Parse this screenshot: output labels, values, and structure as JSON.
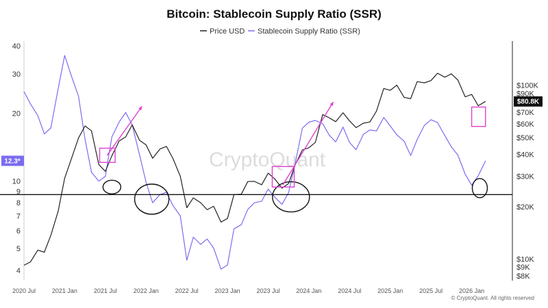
{
  "chart_data": {
    "type": "line",
    "title": "Bitcoin: Stablecoin Supply Ratio (SSR)",
    "watermark": "CryptoQuant",
    "copyright": "© CryptoQuant. All rights reserved",
    "legend": [
      {
        "label": "Price USD",
        "color": "#222222"
      },
      {
        "label": "Stablecoin Supply Ratio (SSR)",
        "color": "#7b6cf0"
      }
    ],
    "x_ticks": [
      "2020 Jul",
      "2021 Jan",
      "2021 Jul",
      "2022 Jan",
      "2022 Jul",
      "2023 Jan",
      "2023 Jul",
      "2024 Jan",
      "2024 Jul",
      "2025 Jan",
      "2025 Jul",
      "2026 Jan"
    ],
    "x_range": [
      2020.5,
      2026.5
    ],
    "left_axis": {
      "label": "",
      "scale": "log",
      "range": [
        3.6,
        42
      ],
      "ticks": [
        4,
        5,
        6,
        7,
        8,
        9,
        10,
        20,
        30,
        40
      ]
    },
    "right_axis": {
      "label": "",
      "scale": "log",
      "range": [
        7500,
        180000
      ],
      "ticks": [
        "$8K",
        "$9K",
        "$10K",
        "$20K",
        "$30K",
        "$40K",
        "$50K",
        "$60K",
        "$70K",
        "$90K",
        "$100K"
      ],
      "tick_values": [
        8000,
        9000,
        10000,
        20000,
        30000,
        40000,
        50000,
        60000,
        70000,
        90000,
        100000
      ]
    },
    "current_ssr_label": "12.3*",
    "current_ssr_value": 12.3,
    "current_price_label": "$80.8K",
    "current_price_value": 80800,
    "horizontal_line_ssr": 8.7,
    "series": [
      {
        "name": "Price USD",
        "axis": "right",
        "color": "#222222",
        "x": [
          2020.5,
          2020.58,
          2020.67,
          2020.75,
          2020.83,
          2020.92,
          2021.0,
          2021.08,
          2021.17,
          2021.25,
          2021.33,
          2021.42,
          2021.5,
          2021.58,
          2021.67,
          2021.75,
          2021.83,
          2021.92,
          2022.0,
          2022.08,
          2022.17,
          2022.25,
          2022.33,
          2022.42,
          2022.5,
          2022.58,
          2022.67,
          2022.75,
          2022.83,
          2022.92,
          2023.0,
          2023.08,
          2023.17,
          2023.25,
          2023.33,
          2023.42,
          2023.5,
          2023.58,
          2023.67,
          2023.75,
          2023.83,
          2023.92,
          2024.0,
          2024.08,
          2024.17,
          2024.25,
          2024.33,
          2024.42,
          2024.5,
          2024.58,
          2024.67,
          2024.75,
          2024.83,
          2024.92,
          2025.0,
          2025.08,
          2025.17,
          2025.25,
          2025.33,
          2025.42,
          2025.5,
          2025.58,
          2025.67,
          2025.75,
          2025.83,
          2025.92,
          2026.0,
          2026.08,
          2026.17
        ],
        "y": [
          9200,
          9600,
          11500,
          10800,
          13500,
          19000,
          29000,
          38000,
          50000,
          57000,
          55000,
          35000,
          32000,
          40000,
          47000,
          50000,
          60000,
          48000,
          46000,
          38000,
          42000,
          45000,
          38000,
          30000,
          20000,
          22000,
          21000,
          19500,
          20000,
          16500,
          17000,
          23000,
          24000,
          28000,
          28000,
          27000,
          30500,
          29000,
          26000,
          27000,
          35000,
          42000,
          43000,
          48000,
          68000,
          65000,
          62000,
          68000,
          63000,
          58000,
          60000,
          62000,
          70000,
          95000,
          96000,
          100000,
          85000,
          84000,
          103000,
          105000,
          108000,
          116000,
          112000,
          115000,
          107000,
          88000,
          88000,
          76000,
          80800
        ]
      },
      {
        "name": "Stablecoin Supply Ratio (SSR)",
        "axis": "left",
        "color": "#7b6cf0",
        "x": [
          2020.5,
          2020.58,
          2020.67,
          2020.75,
          2020.83,
          2020.92,
          2021.0,
          2021.08,
          2021.17,
          2021.25,
          2021.33,
          2021.42,
          2021.5,
          2021.58,
          2021.67,
          2021.75,
          2021.83,
          2021.92,
          2022.0,
          2022.08,
          2022.17,
          2022.25,
          2022.33,
          2022.42,
          2022.5,
          2022.58,
          2022.67,
          2022.75,
          2022.83,
          2022.92,
          2023.0,
          2023.08,
          2023.17,
          2023.25,
          2023.33,
          2023.42,
          2023.5,
          2023.58,
          2023.67,
          2023.75,
          2023.83,
          2023.92,
          2024.0,
          2024.08,
          2024.17,
          2024.25,
          2024.33,
          2024.42,
          2024.5,
          2024.58,
          2024.67,
          2024.75,
          2024.83,
          2024.92,
          2025.0,
          2025.08,
          2025.17,
          2025.25,
          2025.33,
          2025.42,
          2025.5,
          2025.58,
          2025.67,
          2025.75,
          2025.83,
          2025.92,
          2026.0,
          2026.08,
          2026.17
        ],
        "y": [
          25,
          22,
          20,
          16,
          17,
          26,
          36,
          30,
          24,
          15,
          11,
          10,
          10.5,
          16,
          18,
          20,
          18,
          13,
          10,
          8,
          8.5,
          9,
          7.8,
          7,
          4.5,
          5.5,
          5.2,
          5.6,
          5.0,
          4.1,
          4.2,
          6.0,
          6.5,
          7.5,
          8.0,
          8.2,
          9.0,
          8.5,
          8.0,
          8.8,
          12,
          17,
          18,
          19,
          18,
          16,
          15,
          17,
          15,
          14,
          16,
          17,
          16.5,
          19,
          18,
          16,
          15,
          13,
          15,
          18,
          19,
          18,
          16,
          14,
          13,
          11,
          9.5,
          10.5,
          12.3
        ]
      }
    ],
    "annotations": {
      "ellipses": [
        {
          "x": 2021.58,
          "y_ssr": 9.4
        },
        {
          "x": 2022.07,
          "y_ssr": 8.3
        },
        {
          "x": 2023.78,
          "y_ssr": 8.5
        },
        {
          "x": 2026.1,
          "y_ssr": 9.3
        }
      ],
      "rectangles": [
        {
          "x": [
            2021.43,
            2021.62
          ],
          "y_ssr": [
            12.1,
            14.0
          ]
        },
        {
          "x": [
            2023.55,
            2023.82
          ],
          "y_ssr": [
            9.4,
            11.6
          ]
        },
        {
          "x": [
            2026.0,
            2026.17
          ],
          "price": [
            58000,
            75000
          ]
        }
      ],
      "arrows": [
        {
          "from": [
            2021.52,
            13.0
          ],
          "to": [
            2021.95,
            21.5
          ]
        },
        {
          "from": [
            2023.68,
            9.6
          ],
          "to": [
            2024.3,
            22.5
          ]
        }
      ]
    }
  }
}
